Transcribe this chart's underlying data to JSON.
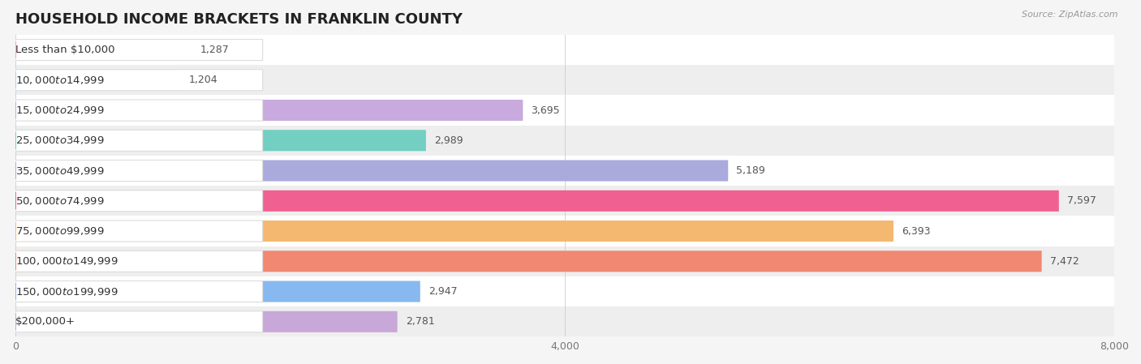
{
  "title": "HOUSEHOLD INCOME BRACKETS IN FRANKLIN COUNTY",
  "source": "Source: ZipAtlas.com",
  "categories": [
    "Less than $10,000",
    "$10,000 to $14,999",
    "$15,000 to $24,999",
    "$25,000 to $34,999",
    "$35,000 to $49,999",
    "$50,000 to $74,999",
    "$75,000 to $99,999",
    "$100,000 to $149,999",
    "$150,000 to $199,999",
    "$200,000+"
  ],
  "values": [
    1287,
    1204,
    3695,
    2989,
    5189,
    7597,
    6393,
    7472,
    2947,
    2781
  ],
  "bar_colors": [
    "#F5AAAA",
    "#AACFF0",
    "#C8AADE",
    "#72CFC2",
    "#AAAADD",
    "#F06090",
    "#F5B870",
    "#F08872",
    "#88B8F0",
    "#C8A8D8"
  ],
  "label_pill_color": "#FFFFFF",
  "label_outline_color": "#DDDDDD",
  "bg_color": "#F5F5F5",
  "row_colors": [
    "#FFFFFF",
    "#EEEEEE"
  ],
  "xlim": [
    0,
    8000
  ],
  "xticks": [
    0,
    4000,
    8000
  ],
  "title_fontsize": 13,
  "label_fontsize": 9.5,
  "value_fontsize": 9
}
